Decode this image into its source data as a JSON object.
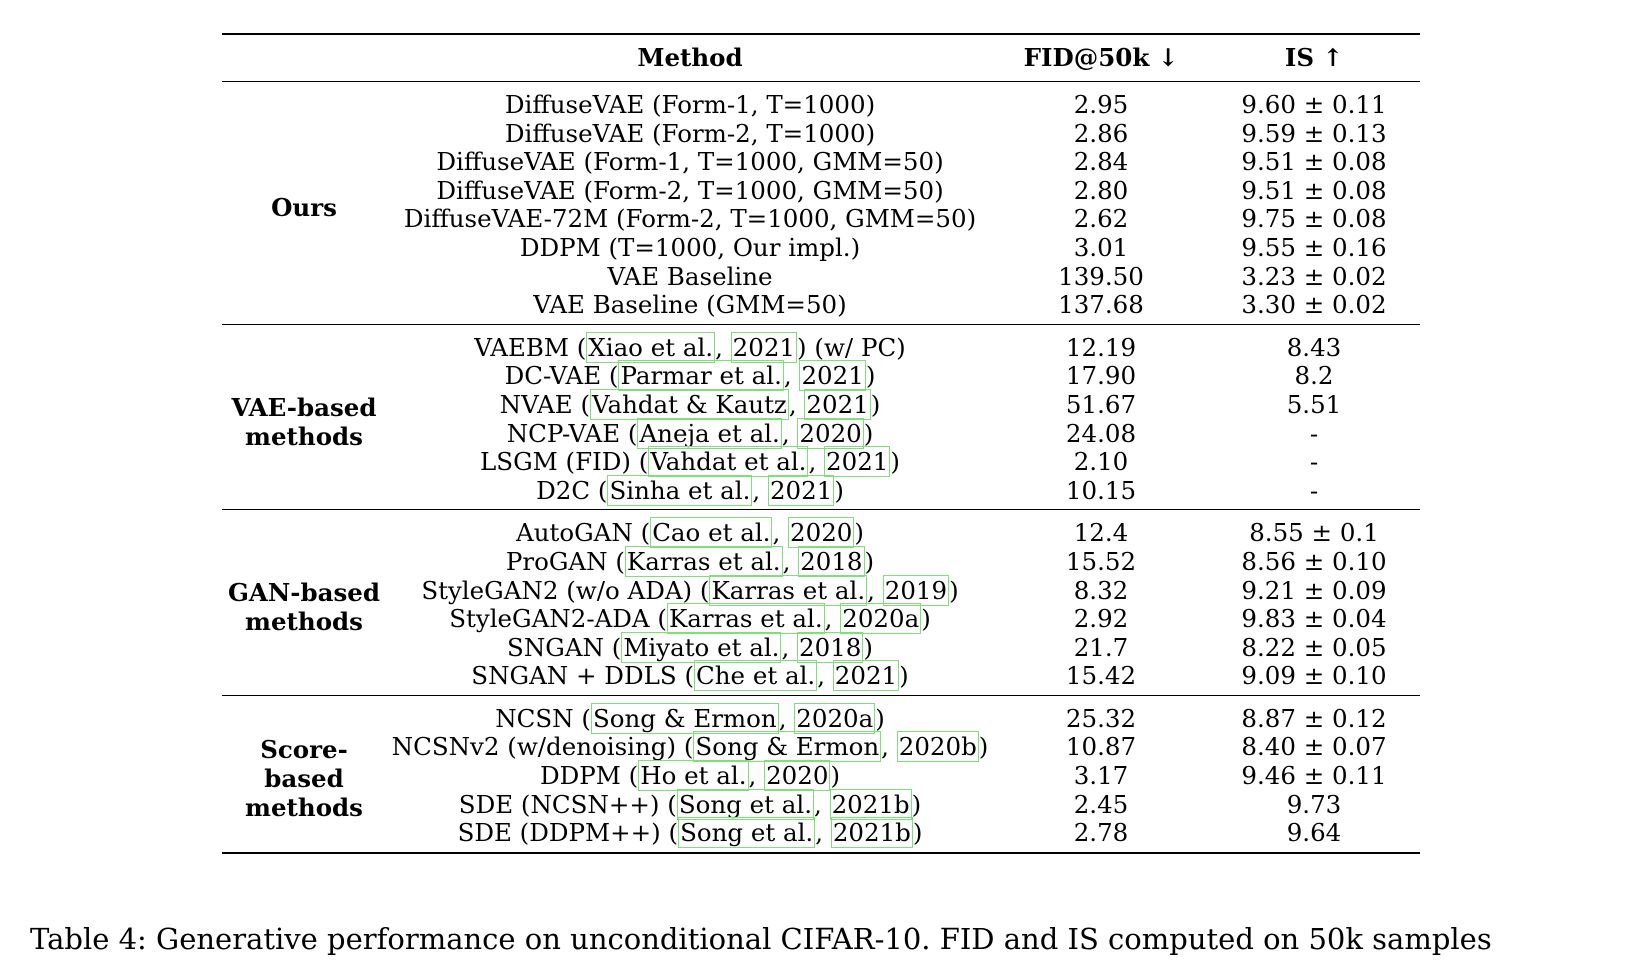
{
  "table": {
    "headers": {
      "group": "",
      "method": "Method",
      "fid": "FID@50k ↓",
      "is": "IS ↑"
    },
    "groups": [
      {
        "label": "Ours",
        "rows": [
          {
            "method": "DiffuseVAE (Form-1, T=1000)",
            "fid": "2.95",
            "is": "9.60 ± 0.11"
          },
          {
            "method": "DiffuseVAE (Form-2, T=1000)",
            "fid": "2.86",
            "is": "9.59 ± 0.13"
          },
          {
            "method": "DiffuseVAE (Form-1, T=1000, GMM=50)",
            "fid": "2.84",
            "is": "9.51 ± 0.08"
          },
          {
            "method": "DiffuseVAE (Form-2, T=1000, GMM=50)",
            "fid": "2.80",
            "is": "9.51 ± 0.08"
          },
          {
            "method": "DiffuseVAE-72M (Form-2, T=1000, GMM=50)",
            "fid": "2.62",
            "is": "9.75 ± 0.08"
          },
          {
            "method": "DDPM (T=1000, Our impl.)",
            "fid": "3.01",
            "is": "9.55 ± 0.16"
          },
          {
            "method": "VAE Baseline",
            "fid": "139.50",
            "is": "3.23 ± 0.02"
          },
          {
            "method": "VAE Baseline (GMM=50)",
            "fid": "137.68",
            "is": "3.30 ± 0.02"
          }
        ]
      },
      {
        "label": "VAE-based methods",
        "rows": [
          {
            "name": "VAEBM",
            "authors": "Xiao et al.",
            "year": "2021",
            "suffix": " (w/ PC)",
            "fid": "12.19",
            "is": "8.43"
          },
          {
            "name": "DC-VAE",
            "authors": "Parmar et al.",
            "year": "2021",
            "suffix": "",
            "fid": "17.90",
            "is": "8.2"
          },
          {
            "name": "NVAE",
            "authors": "Vahdat & Kautz",
            "year": "2021",
            "suffix": "",
            "fid": "51.67",
            "is": "5.51"
          },
          {
            "name": "NCP-VAE",
            "authors": "Aneja et al.",
            "year": "2020",
            "suffix": "",
            "fid": "24.08",
            "is": "-"
          },
          {
            "name": "LSGM (FID)",
            "authors": "Vahdat et al.",
            "year": "2021",
            "suffix": "",
            "fid": "2.10",
            "is": "-"
          },
          {
            "name": "D2C",
            "authors": "Sinha et al.",
            "year": "2021",
            "suffix": "",
            "fid": "10.15",
            "is": "-"
          }
        ]
      },
      {
        "label": "GAN-based methods",
        "rows": [
          {
            "name": "AutoGAN",
            "authors": "Cao et al.",
            "year": "2020",
            "suffix": "",
            "fid": "12.4",
            "is": "8.55 ± 0.1"
          },
          {
            "name": "ProGAN",
            "authors": "Karras et al.",
            "year": "2018",
            "suffix": "",
            "fid": "15.52",
            "is": "8.56 ± 0.10"
          },
          {
            "name": "StyleGAN2 (w/o ADA)",
            "authors": "Karras et al.",
            "year": "2019",
            "suffix": "",
            "fid": "8.32",
            "is": "9.21 ± 0.09"
          },
          {
            "name": "StyleGAN2-ADA",
            "authors": "Karras et al.",
            "year": "2020a",
            "suffix": "",
            "fid": "2.92",
            "is": "9.83 ± 0.04"
          },
          {
            "name": "SNGAN",
            "authors": "Miyato et al.",
            "year": "2018",
            "suffix": "",
            "fid": "21.7",
            "is": "8.22 ± 0.05"
          },
          {
            "name": "SNGAN + DDLS",
            "authors": "Che et al.",
            "year": "2021",
            "suffix": "",
            "fid": "15.42",
            "is": "9.09 ± 0.10"
          }
        ]
      },
      {
        "label": "Score-based methods",
        "rows": [
          {
            "name": "NCSN",
            "authors": "Song & Ermon",
            "year": "2020a",
            "suffix": "",
            "fid": "25.32",
            "is": "8.87 ± 0.12"
          },
          {
            "name": "NCSNv2 (w/denoising)",
            "authors": "Song & Ermon",
            "year": "2020b",
            "suffix": "",
            "fid": "10.87",
            "is": "8.40 ± 0.07"
          },
          {
            "name": "DDPM",
            "authors": "Ho et al.",
            "year": "2020",
            "suffix": "",
            "fid": "3.17",
            "is": "9.46 ± 0.11"
          },
          {
            "name": "SDE (NCSN++)",
            "authors": "Song et al.",
            "year": "2021b",
            "suffix": "",
            "fid": "2.45",
            "is": "9.73"
          },
          {
            "name": "SDE (DDPM++)",
            "authors": "Song et al.",
            "year": "2021b",
            "suffix": "",
            "fid": "2.78",
            "is": "9.64"
          }
        ]
      }
    ]
  },
  "caption": "Table 4: Generative performance on unconditional CIFAR-10. FID and IS computed on 50k samples",
  "colors": {
    "citation_border": "#7fe07a"
  }
}
